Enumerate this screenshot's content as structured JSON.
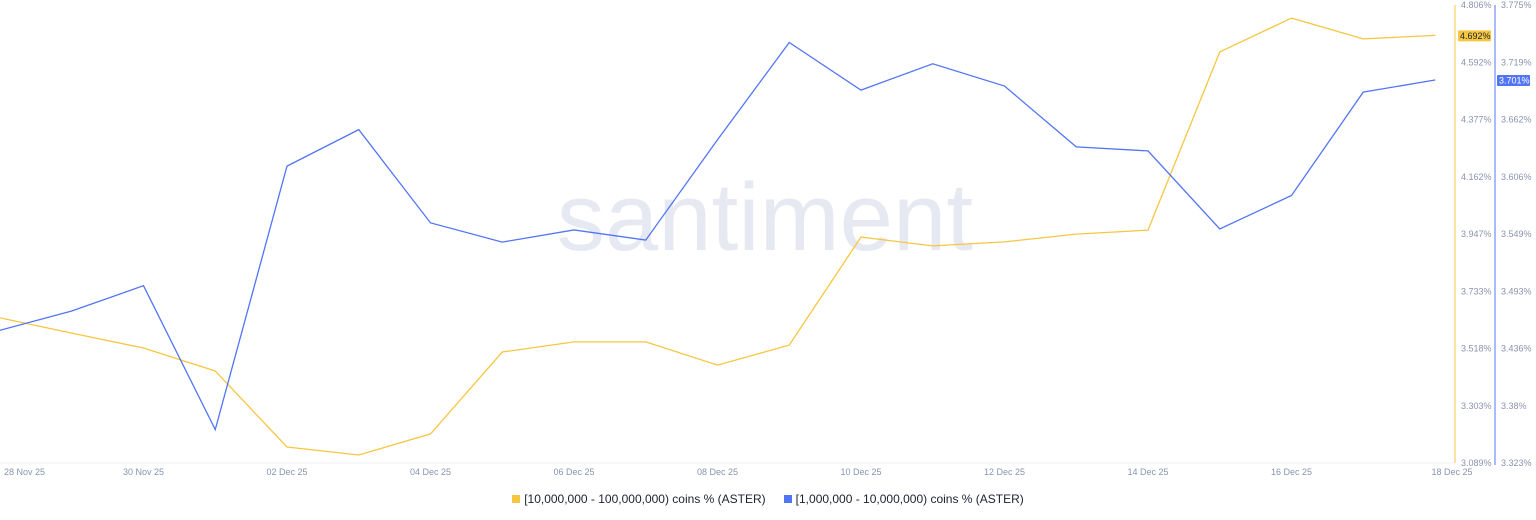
{
  "chart_data": {
    "type": "line",
    "watermark": "santiment",
    "x": [
      "28 Nov 25",
      "29 Nov 25",
      "30 Nov 25",
      "01 Dec 25",
      "02 Dec 25",
      "03 Dec 25",
      "04 Dec 25",
      "05 Dec 25",
      "06 Dec 25",
      "07 Dec 25",
      "08 Dec 25",
      "09 Dec 25",
      "10 Dec 25",
      "11 Dec 25",
      "12 Dec 25",
      "13 Dec 25",
      "14 Dec 25",
      "15 Dec 25",
      "16 Dec 25",
      "17 Dec 25",
      "18 Dec 25"
    ],
    "x_tick_labels": [
      "28 Nov 25",
      "30 Nov 25",
      "02 Dec 25",
      "04 Dec 25",
      "06 Dec 25",
      "08 Dec 25",
      "10 Dec 25",
      "12 Dec 25",
      "14 Dec 25",
      "16 Dec 25",
      "18 Dec 25"
    ],
    "series": [
      {
        "name": "[10,000,000 - 100,000,000) coins % (ASTER)",
        "color": "#f7c641",
        "axis": "left",
        "last_label": "4.692%",
        "values": [
          3.633,
          3.576,
          3.52,
          3.434,
          3.149,
          3.119,
          3.198,
          3.505,
          3.543,
          3.543,
          3.456,
          3.531,
          3.936,
          3.903,
          3.918,
          3.947,
          3.962,
          4.63,
          4.757,
          4.679,
          4.692
        ]
      },
      {
        "name": "[1,000,000 - 10,000,000) coins % (ASTER)",
        "color": "#5275f5",
        "axis": "right",
        "last_label": "3.701%",
        "values": [
          3.454,
          3.473,
          3.498,
          3.356,
          3.616,
          3.652,
          3.56,
          3.541,
          3.553,
          3.543,
          3.642,
          3.738,
          3.691,
          3.717,
          3.695,
          3.635,
          3.631,
          3.554,
          3.587,
          3.689,
          3.701
        ]
      }
    ],
    "y_left": {
      "range": [
        3.089,
        4.806
      ],
      "ticks": [
        "4.806%",
        "4.592%",
        "4.377%",
        "4.162%",
        "3.947%",
        "3.733%",
        "3.518%",
        "3.303%",
        "3.089%"
      ]
    },
    "y_right": {
      "range": [
        3.323,
        3.775
      ],
      "ticks": [
        "3.775%",
        "3.719%",
        "3.662%",
        "3.606%",
        "3.549%",
        "3.493%",
        "3.436%",
        "3.38%",
        "3.323%"
      ]
    },
    "grid": false,
    "legend_position": "bottom"
  }
}
